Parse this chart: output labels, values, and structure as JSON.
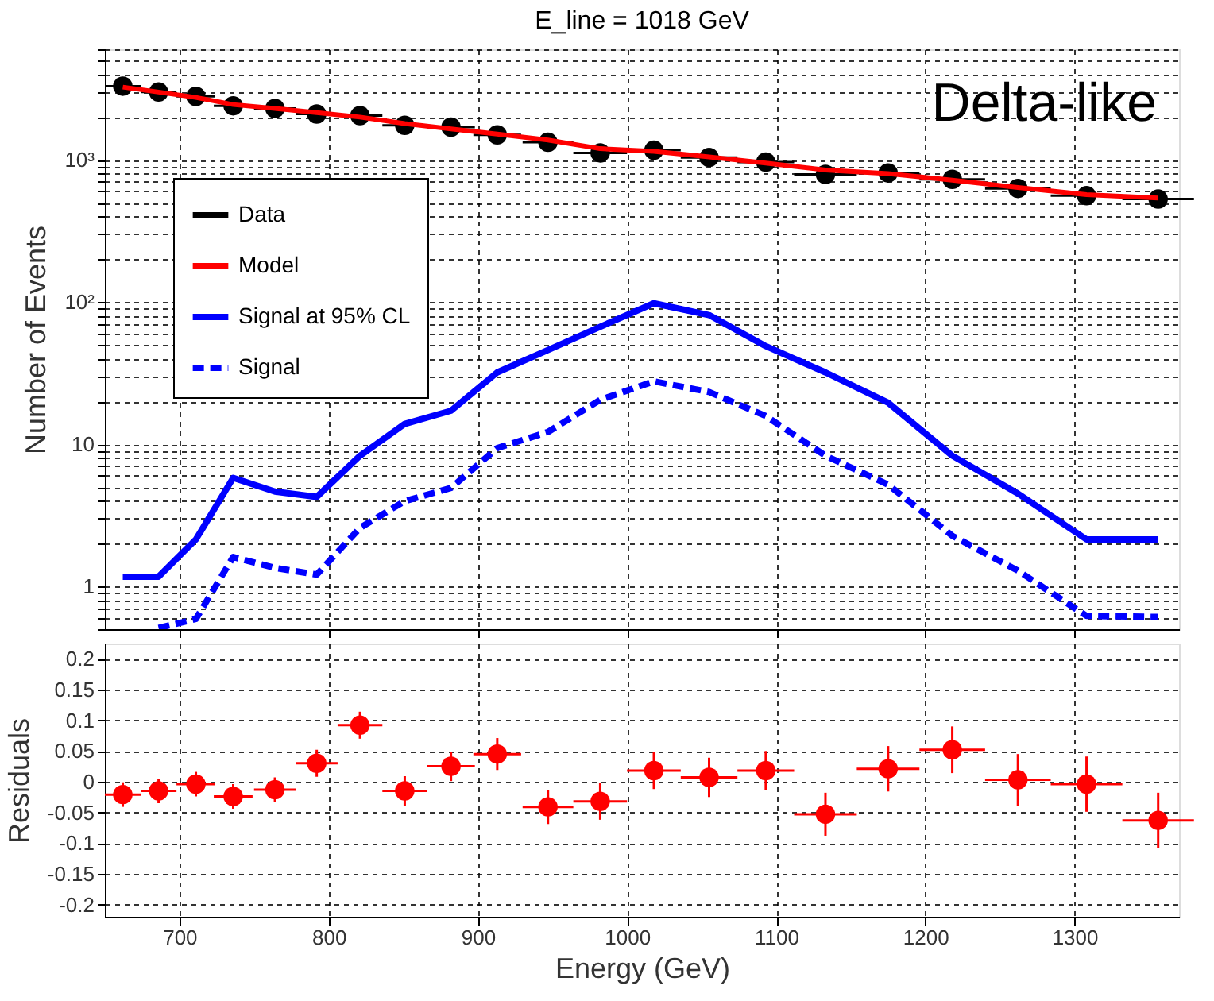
{
  "chart_data": [
    {
      "type": "line",
      "title": "E_line = 1018 GeV",
      "ylabel": "Number of Events",
      "log": "y",
      "grid": true,
      "legend": "top left",
      "tick_labels": "y",
      "annotations": [
        "Delta-like"
      ],
      "x": [
        662,
        686,
        711,
        736,
        764,
        792,
        821,
        851,
        882,
        913,
        947,
        982,
        1018,
        1055,
        1093,
        1133,
        1175,
        1218,
        1262,
        1308,
        1356
      ],
      "xlim": [
        650,
        1370
      ],
      "xticks": [
        700,
        800,
        900,
        1000,
        1100,
        1200,
        1300
      ],
      "ylim": [
        0.5,
        6000
      ],
      "yticks": [
        {
          "value": 0.5,
          "label": null
        },
        {
          "value": 0.6,
          "label": null
        },
        {
          "value": 0.7,
          "label": null
        },
        {
          "value": 0.8,
          "label": null
        },
        {
          "value": 0.9,
          "label": null
        },
        1,
        {
          "value": 2,
          "label": null
        },
        {
          "value": 3,
          "label": null
        },
        {
          "value": 4,
          "label": null
        },
        {
          "value": 5,
          "label": null
        },
        {
          "value": 6,
          "label": null
        },
        {
          "value": 7,
          "label": null
        },
        {
          "value": 8,
          "label": null
        },
        {
          "value": 9,
          "label": null
        },
        10,
        {
          "value": 20,
          "label": null
        },
        {
          "value": 30,
          "label": null
        },
        {
          "value": 40,
          "label": null
        },
        {
          "value": 50,
          "label": null
        },
        {
          "value": 60,
          "label": null
        },
        {
          "value": 70,
          "label": null
        },
        {
          "value": 80,
          "label": null
        },
        {
          "value": 90,
          "label": null
        },
        {
          "value": 100,
          "label": "10²"
        },
        {
          "value": 200,
          "label": null
        },
        {
          "value": 300,
          "label": null
        },
        {
          "value": 400,
          "label": null
        },
        {
          "value": 500,
          "label": null
        },
        {
          "value": 600,
          "label": null
        },
        {
          "value": 700,
          "label": null
        },
        {
          "value": 800,
          "label": null
        },
        {
          "value": 900,
          "label": null
        },
        {
          "value": 1000,
          "label": "10³"
        },
        {
          "value": 2000,
          "label": null
        },
        {
          "value": 3000,
          "label": null
        },
        {
          "value": 4000,
          "label": null
        },
        {
          "value": 5000,
          "label": null
        },
        {
          "value": 6000,
          "label": null
        }
      ],
      "series": [
        {
          "name": "Data",
          "type": "scatter",
          "marker": "circle",
          "color": "#000000",
          "values": [
            3300,
            3000,
            2800,
            2400,
            2300,
            2100,
            2050,
            1750,
            1700,
            1500,
            1330,
            1120,
            1170,
            1040,
            965,
            790,
            810,
            730,
            630,
            560,
            530
          ],
          "xerrors": [
            12,
            12,
            13,
            13,
            14,
            14,
            15,
            15,
            16,
            16,
            17,
            18,
            18,
            19,
            19,
            21,
            21,
            22,
            22,
            24,
            24
          ]
        },
        {
          "name": "Model",
          "color": "#ff0000",
          "line_style": "solid",
          "values": [
            3250,
            3000,
            2750,
            2450,
            2300,
            2150,
            2000,
            1800,
            1650,
            1520,
            1380,
            1200,
            1150,
            1050,
            950,
            850,
            800,
            720,
            640,
            570,
            540
          ]
        },
        {
          "name": "Signal at 95% CL",
          "color": "#0000ff",
          "line_style": "solid",
          "values": [
            1.17,
            1.17,
            2.14,
            5.8,
            4.65,
            4.26,
            8.3,
            13.9,
            17.2,
            32,
            46,
            67,
            98,
            81,
            49,
            32,
            19.6,
            8.3,
            4.5,
            2.14,
            2.14
          ]
        },
        {
          "name": "Signal",
          "color": "#0000ff",
          "line_style": "dashed",
          "values": [
            null,
            0.51,
            0.59,
            1.61,
            1.35,
            1.21,
            2.58,
            3.98,
            4.93,
            9.4,
            12.2,
            20.5,
            27.7,
            23.3,
            15.8,
            8.3,
            5.2,
            2.27,
            1.29,
            0.62,
            0.61
          ]
        }
      ]
    },
    {
      "type": "scatter",
      "xlabel": "Energy (GeV)",
      "ylabel": "Residuals",
      "grid": true,
      "x": [
        662,
        686,
        711,
        736,
        764,
        792,
        821,
        851,
        882,
        913,
        947,
        982,
        1018,
        1055,
        1093,
        1133,
        1175,
        1218,
        1262,
        1308,
        1356
      ],
      "xlim": [
        650,
        1370
      ],
      "xticks": [
        700,
        800,
        900,
        1000,
        1100,
        1200,
        1300
      ],
      "ylim": [
        -0.22,
        0.225
      ],
      "yticks": [
        -0.2,
        -0.15,
        -0.1,
        -0.05,
        0,
        0.05,
        0.1,
        0.15,
        0.2
      ],
      "series": [
        {
          "marker": "circle",
          "color": "#ff0000",
          "values": [
            -0.021,
            -0.015,
            -0.004,
            -0.024,
            -0.013,
            0.03,
            0.092,
            -0.015,
            0.025,
            0.045,
            -0.041,
            -0.032,
            0.018,
            0.007,
            0.018,
            -0.053,
            0.021,
            0.052,
            0.003,
            -0.004,
            -0.063
          ],
          "errors": [
            0.02,
            0.02,
            0.02,
            0.02,
            0.02,
            0.022,
            0.022,
            0.024,
            0.024,
            0.026,
            0.028,
            0.03,
            0.03,
            0.032,
            0.032,
            0.035,
            0.037,
            0.038,
            0.042,
            0.045,
            0.045
          ],
          "xerrors": [
            12,
            12,
            13,
            13,
            14,
            14,
            15,
            15,
            16,
            16,
            17,
            18,
            18,
            19,
            19,
            21,
            21,
            22,
            22,
            24,
            24
          ]
        }
      ]
    }
  ]
}
